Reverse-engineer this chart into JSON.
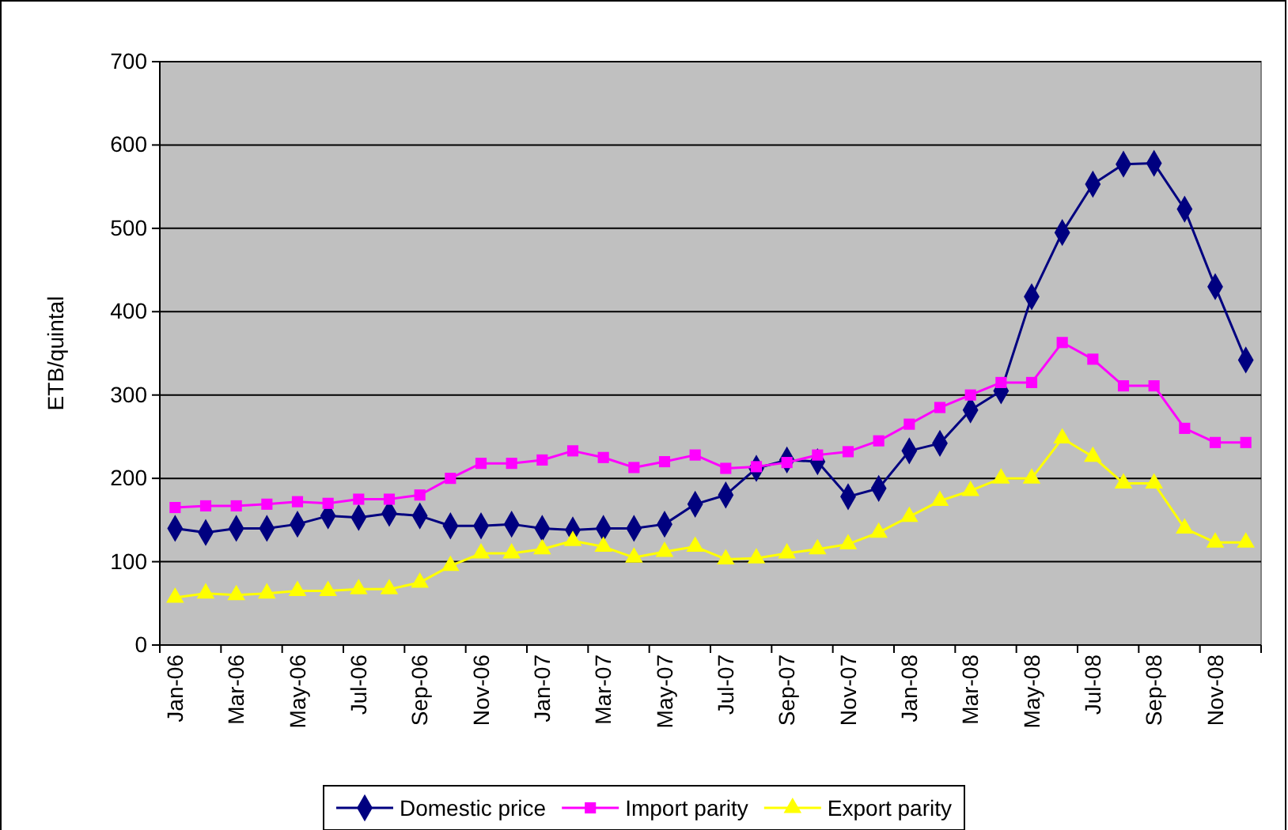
{
  "chart_data": {
    "type": "line",
    "ylabel": "ETB/quintal",
    "categories": [
      "Jan-06",
      null,
      "Mar-06",
      null,
      "May-06",
      null,
      "Jul-06",
      null,
      "Sep-06",
      null,
      "Nov-06",
      null,
      "Jan-07",
      null,
      "Mar-07",
      null,
      "May-07",
      null,
      "Jul-07",
      null,
      "Sep-07",
      null,
      "Nov-07",
      null,
      "Jan-08",
      null,
      "Mar-08",
      null,
      "May-08",
      null,
      "Jul-08",
      null,
      "Sep-08",
      null,
      "Nov-08",
      null
    ],
    "series": [
      {
        "name": "Domestic price",
        "color": "#000080",
        "marker": "diamond",
        "values": [
          140,
          135,
          140,
          140,
          145,
          155,
          153,
          158,
          155,
          143,
          143,
          145,
          140,
          138,
          140,
          140,
          145,
          169,
          180,
          212,
          222,
          220,
          178,
          188,
          233,
          242,
          282,
          305,
          418,
          495,
          553,
          577,
          578,
          523,
          430,
          342
        ]
      },
      {
        "name": "Import parity",
        "color": "#ff00ff",
        "marker": "square",
        "values": [
          165,
          167,
          167,
          169,
          172,
          170,
          175,
          175,
          180,
          200,
          218,
          218,
          222,
          233,
          225,
          213,
          220,
          228,
          212,
          214,
          219,
          228,
          232,
          245,
          265,
          285,
          300,
          315,
          315,
          363,
          343,
          311,
          311,
          260,
          243,
          243
        ]
      },
      {
        "name": "Export parity",
        "color": "#ffff00",
        "marker": "triangle",
        "values": [
          57,
          62,
          60,
          62,
          65,
          65,
          67,
          67,
          75,
          95,
          110,
          110,
          115,
          125,
          118,
          105,
          112,
          118,
          103,
          104,
          110,
          115,
          121,
          135,
          154,
          173,
          185,
          200,
          200,
          248,
          226,
          194,
          194,
          140,
          123,
          123
        ]
      }
    ],
    "ylim": [
      0,
      700
    ],
    "yticks": [
      0,
      100,
      200,
      300,
      400,
      500,
      600,
      700
    ],
    "grid": "y",
    "legend": "bottom"
  }
}
